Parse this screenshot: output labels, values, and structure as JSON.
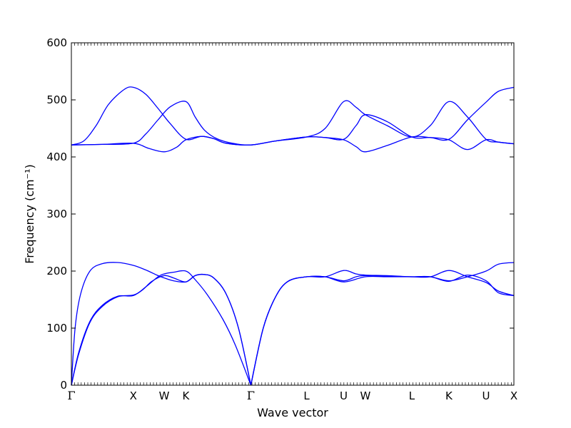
{
  "chart_data": {
    "type": "line",
    "xlabel": "Wave vector",
    "ylabel": "Frequency (cm⁻¹)",
    "ylim": [
      0,
      600
    ],
    "yticks": [
      0,
      100,
      200,
      300,
      400,
      500,
      600
    ],
    "xlim": [
      0,
      7.15
    ],
    "kpoints": [
      {
        "label": "Γ",
        "x": 0.0
      },
      {
        "label": "X",
        "x": 1.0
      },
      {
        "label": "W",
        "x": 1.5
      },
      {
        "label": "K",
        "x": 1.85
      },
      {
        "label": "Γ",
        "x": 2.9
      },
      {
        "label": "L",
        "x": 3.8
      },
      {
        "label": "U",
        "x": 4.4
      },
      {
        "label": "W",
        "x": 4.75
      },
      {
        "label": "L",
        "x": 5.5
      },
      {
        "label": "K",
        "x": 6.1
      },
      {
        "label": "U",
        "x": 6.7
      },
      {
        "label": "X",
        "x": 7.15
      }
    ],
    "line_color": "#0000ff",
    "grid": false,
    "series": [
      {
        "points": [
          [
            0,
            0
          ],
          [
            0.12,
            55
          ],
          [
            0.3,
            110
          ],
          [
            0.5,
            138
          ],
          [
            0.75,
            155
          ],
          [
            1.0,
            158
          ],
          [
            1.15,
            167
          ],
          [
            1.3,
            182
          ],
          [
            1.5,
            192
          ],
          [
            1.65,
            188
          ],
          [
            1.85,
            181
          ],
          [
            2.0,
            192
          ],
          [
            2.15,
            194
          ],
          [
            2.3,
            188
          ],
          [
            2.5,
            160
          ],
          [
            2.7,
            100
          ],
          [
            2.9,
            0
          ]
        ]
      },
      {
        "points": [
          [
            0,
            0
          ],
          [
            0.12,
            58
          ],
          [
            0.3,
            112
          ],
          [
            0.5,
            140
          ],
          [
            0.75,
            156
          ],
          [
            1.0,
            157
          ],
          [
            1.2,
            172
          ],
          [
            1.4,
            190
          ],
          [
            1.5,
            195
          ],
          [
            1.65,
            198
          ],
          [
            1.85,
            200
          ],
          [
            2.0,
            185
          ],
          [
            2.2,
            158
          ],
          [
            2.45,
            115
          ],
          [
            2.65,
            70
          ],
          [
            2.9,
            0
          ]
        ]
      },
      {
        "points": [
          [
            0,
            0
          ],
          [
            0.06,
            100
          ],
          [
            0.15,
            160
          ],
          [
            0.3,
            200
          ],
          [
            0.5,
            213
          ],
          [
            0.75,
            215
          ],
          [
            1.0,
            210
          ],
          [
            1.2,
            202
          ],
          [
            1.4,
            192
          ],
          [
            1.5,
            188
          ],
          [
            1.65,
            183
          ],
          [
            1.85,
            181
          ],
          [
            2.0,
            192
          ],
          [
            2.15,
            194
          ],
          [
            2.3,
            188
          ],
          [
            2.5,
            160
          ],
          [
            2.7,
            100
          ],
          [
            2.9,
            0
          ]
        ]
      },
      {
        "points": [
          [
            2.9,
            0
          ],
          [
            3.1,
            100
          ],
          [
            3.3,
            155
          ],
          [
            3.5,
            182
          ],
          [
            3.8,
            190
          ],
          [
            4.1,
            190
          ],
          [
            4.4,
            181
          ],
          [
            4.75,
            190
          ],
          [
            5.1,
            190
          ],
          [
            5.5,
            190
          ],
          [
            5.8,
            190
          ],
          [
            6.1,
            182
          ],
          [
            6.4,
            193
          ],
          [
            6.7,
            183
          ],
          [
            6.9,
            162
          ],
          [
            7.15,
            157
          ]
        ]
      },
      {
        "points": [
          [
            2.9,
            0
          ],
          [
            3.1,
            100
          ],
          [
            3.3,
            155
          ],
          [
            3.5,
            182
          ],
          [
            3.8,
            190
          ],
          [
            4.1,
            190
          ],
          [
            4.4,
            201
          ],
          [
            4.6,
            195
          ],
          [
            4.75,
            193
          ],
          [
            5.1,
            192
          ],
          [
            5.5,
            190
          ],
          [
            5.8,
            190
          ],
          [
            6.1,
            201
          ],
          [
            6.4,
            190
          ],
          [
            6.7,
            180
          ],
          [
            6.9,
            165
          ],
          [
            7.15,
            157
          ]
        ]
      },
      {
        "points": [
          [
            2.9,
            0
          ],
          [
            3.1,
            100
          ],
          [
            3.3,
            155
          ],
          [
            3.5,
            182
          ],
          [
            3.8,
            190
          ],
          [
            4.1,
            190
          ],
          [
            4.4,
            183
          ],
          [
            4.6,
            190
          ],
          [
            4.75,
            192
          ],
          [
            5.1,
            191
          ],
          [
            5.5,
            190
          ],
          [
            5.8,
            190
          ],
          [
            6.1,
            183
          ],
          [
            6.4,
            190
          ],
          [
            6.7,
            200
          ],
          [
            6.9,
            212
          ],
          [
            7.15,
            215
          ]
        ]
      },
      {
        "points": [
          [
            0,
            421
          ],
          [
            0.5,
            422
          ],
          [
            1.0,
            424
          ],
          [
            1.25,
            415
          ],
          [
            1.5,
            409
          ],
          [
            1.7,
            417
          ],
          [
            1.85,
            430
          ],
          [
            2.1,
            436
          ],
          [
            2.3,
            432
          ],
          [
            2.5,
            424
          ],
          [
            2.9,
            421
          ],
          [
            3.3,
            428
          ],
          [
            3.8,
            435
          ],
          [
            4.1,
            434
          ],
          [
            4.4,
            430
          ],
          [
            4.6,
            418
          ],
          [
            4.75,
            409
          ],
          [
            5.1,
            420
          ],
          [
            5.5,
            435
          ],
          [
            5.8,
            434
          ],
          [
            6.1,
            430
          ],
          [
            6.4,
            413
          ],
          [
            6.7,
            430
          ],
          [
            6.9,
            426
          ],
          [
            7.15,
            423
          ]
        ]
      },
      {
        "points": [
          [
            0,
            421
          ],
          [
            0.5,
            422
          ],
          [
            1.0,
            424
          ],
          [
            1.2,
            440
          ],
          [
            1.4,
            465
          ],
          [
            1.6,
            488
          ],
          [
            1.85,
            497
          ],
          [
            2.0,
            470
          ],
          [
            2.15,
            447
          ],
          [
            2.35,
            432
          ],
          [
            2.6,
            424
          ],
          [
            2.9,
            421
          ],
          [
            3.3,
            428
          ],
          [
            3.8,
            435
          ],
          [
            4.1,
            450
          ],
          [
            4.4,
            497
          ],
          [
            4.6,
            487
          ],
          [
            4.75,
            474
          ],
          [
            5.1,
            455
          ],
          [
            5.5,
            435
          ],
          [
            5.8,
            455
          ],
          [
            6.1,
            497
          ],
          [
            6.4,
            470
          ],
          [
            6.7,
            431
          ],
          [
            6.9,
            426
          ],
          [
            7.15,
            423
          ]
        ]
      },
      {
        "points": [
          [
            0,
            421
          ],
          [
            0.2,
            428
          ],
          [
            0.4,
            455
          ],
          [
            0.6,
            492
          ],
          [
            0.85,
            518
          ],
          [
            1.0,
            522
          ],
          [
            1.2,
            510
          ],
          [
            1.4,
            485
          ],
          [
            1.6,
            458
          ],
          [
            1.85,
            431
          ],
          [
            2.1,
            436
          ],
          [
            2.3,
            432
          ],
          [
            2.5,
            424
          ],
          [
            2.9,
            421
          ],
          [
            3.3,
            428
          ],
          [
            3.8,
            435
          ],
          [
            4.1,
            434
          ],
          [
            4.4,
            431
          ],
          [
            4.6,
            455
          ],
          [
            4.75,
            474
          ],
          [
            5.1,
            462
          ],
          [
            5.5,
            435
          ],
          [
            5.8,
            434
          ],
          [
            6.1,
            431
          ],
          [
            6.4,
            465
          ],
          [
            6.7,
            496
          ],
          [
            6.9,
            515
          ],
          [
            7.15,
            522
          ]
        ]
      }
    ]
  }
}
